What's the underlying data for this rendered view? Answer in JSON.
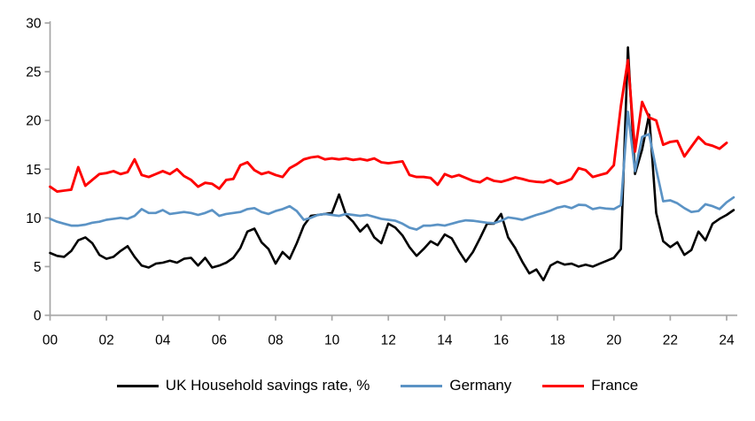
{
  "chart_data": {
    "type": "line",
    "title": "",
    "frequency": "quarterly",
    "x_start": "2000 Q1",
    "x_tick_labels": [
      "00",
      "02",
      "04",
      "06",
      "08",
      "10",
      "12",
      "14",
      "16",
      "18",
      "20",
      "22",
      "24"
    ],
    "y_ticks": [
      0,
      5,
      10,
      15,
      20,
      25,
      30
    ],
    "ylim": [
      0,
      30
    ],
    "grid": false,
    "legend_position": "bottom",
    "axis_color": "#A6A6A6",
    "text_color": "#000000",
    "series": [
      {
        "id": "uk",
        "name": "UK Household savings rate, %",
        "color": "#000000",
        "stroke_width": 2.6,
        "values": [
          6.4,
          6.1,
          6.0,
          6.6,
          7.7,
          8.0,
          7.4,
          6.2,
          5.8,
          6.0,
          6.6,
          7.1,
          6.0,
          5.1,
          4.9,
          5.3,
          5.4,
          5.6,
          5.4,
          5.8,
          5.9,
          5.1,
          5.9,
          4.9,
          5.1,
          5.4,
          5.9,
          6.9,
          8.6,
          8.9,
          7.5,
          6.8,
          5.3,
          6.5,
          5.8,
          7.4,
          9.2,
          10.2,
          10.3,
          10.4,
          10.5,
          12.4,
          10.3,
          9.6,
          8.6,
          9.3,
          8.0,
          7.4,
          9.4,
          9.0,
          8.2,
          7.0,
          6.1,
          6.8,
          7.6,
          7.2,
          8.3,
          7.9,
          6.6,
          5.5,
          6.5,
          7.9,
          9.4,
          9.4,
          10.4,
          8.0,
          6.9,
          5.5,
          4.3,
          4.7,
          3.6,
          5.1,
          5.5,
          5.2,
          5.3,
          5.0,
          5.2,
          5.0,
          5.3,
          5.6,
          5.9,
          6.8,
          27.5,
          14.5,
          17.0,
          20.6,
          10.5,
          7.6,
          7.0,
          7.5,
          6.2,
          6.7,
          8.6,
          7.7,
          9.4,
          9.9,
          10.3,
          10.8
        ]
      },
      {
        "id": "germany",
        "name": "Germany",
        "color": "#5B93C5",
        "stroke_width": 2.7,
        "values": [
          9.9,
          9.6,
          9.4,
          9.2,
          9.2,
          9.3,
          9.5,
          9.6,
          9.8,
          9.9,
          10.0,
          9.9,
          10.2,
          10.9,
          10.5,
          10.5,
          10.8,
          10.4,
          10.5,
          10.6,
          10.5,
          10.3,
          10.5,
          10.8,
          10.2,
          10.4,
          10.5,
          10.6,
          10.9,
          11.0,
          10.6,
          10.4,
          10.7,
          10.9,
          11.2,
          10.7,
          9.8,
          10.0,
          10.3,
          10.4,
          10.3,
          10.2,
          10.4,
          10.3,
          10.2,
          10.3,
          10.1,
          9.9,
          9.8,
          9.7,
          9.4,
          9.0,
          8.8,
          9.2,
          9.2,
          9.3,
          9.2,
          9.4,
          9.6,
          9.75,
          9.7,
          9.6,
          9.5,
          9.45,
          9.7,
          10.05,
          9.95,
          9.8,
          10.05,
          10.3,
          10.5,
          10.75,
          11.05,
          11.2,
          11.0,
          11.35,
          11.3,
          10.9,
          11.05,
          10.95,
          10.9,
          11.3,
          20.9,
          14.8,
          18.3,
          18.6,
          15.0,
          11.7,
          11.8,
          11.5,
          11.0,
          10.6,
          10.7,
          11.4,
          11.2,
          10.9,
          11.6,
          12.1
        ]
      },
      {
        "id": "france",
        "name": "France",
        "color": "#FE0000",
        "stroke_width": 2.9,
        "values": [
          13.2,
          12.7,
          12.8,
          12.9,
          15.2,
          13.3,
          13.9,
          14.5,
          14.6,
          14.8,
          14.5,
          14.7,
          16.0,
          14.4,
          14.2,
          14.5,
          14.8,
          14.5,
          15.0,
          14.3,
          13.9,
          13.2,
          13.6,
          13.5,
          13.0,
          13.9,
          14.0,
          15.4,
          15.7,
          14.9,
          14.5,
          14.7,
          14.4,
          14.2,
          15.1,
          15.5,
          16.0,
          16.2,
          16.3,
          16.0,
          16.1,
          16.0,
          16.1,
          15.95,
          16.05,
          15.9,
          16.1,
          15.7,
          15.6,
          15.7,
          15.8,
          14.4,
          14.2,
          14.2,
          14.1,
          13.4,
          14.5,
          14.2,
          14.4,
          14.1,
          13.8,
          13.65,
          14.1,
          13.8,
          13.7,
          13.9,
          14.15,
          14.0,
          13.8,
          13.7,
          13.65,
          13.9,
          13.5,
          13.7,
          14.0,
          15.1,
          14.9,
          14.2,
          14.4,
          14.6,
          15.4,
          21.5,
          26.2,
          16.8,
          21.9,
          20.3,
          20.0,
          17.5,
          17.8,
          17.9,
          16.3,
          17.3,
          18.3,
          17.6,
          17.4,
          17.1,
          17.7
        ]
      }
    ]
  }
}
